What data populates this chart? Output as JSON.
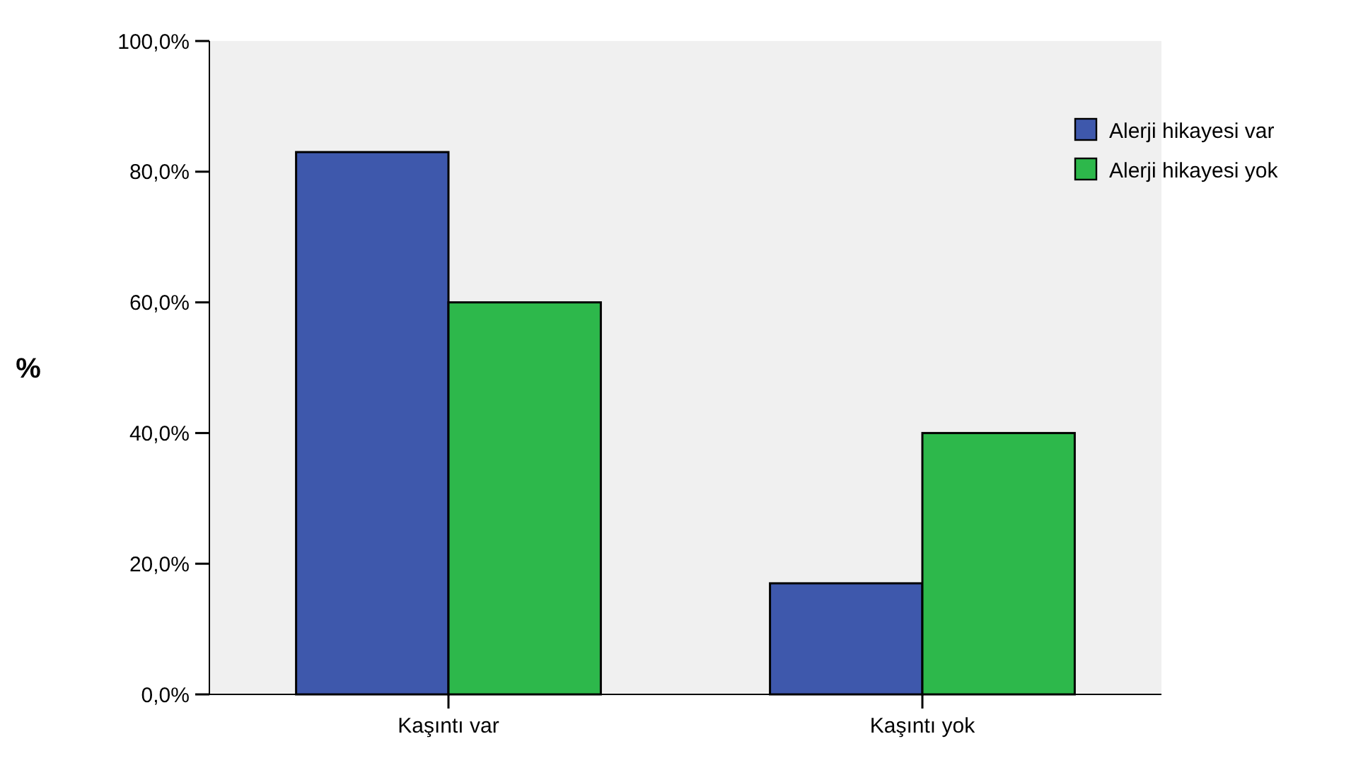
{
  "chart_data": {
    "type": "bar",
    "ylabel": "%",
    "categories": [
      "Kaşıntı var",
      "Kaşıntı yok"
    ],
    "series": [
      {
        "name": "Alerji hikayesi var",
        "color": "#3e58ac",
        "values": [
          83,
          17
        ]
      },
      {
        "name": "Alerji hikayesi yok",
        "color": "#2db84b",
        "values": [
          60,
          40
        ]
      }
    ],
    "ylim": [
      0,
      100
    ],
    "yticks": [
      {
        "value": 0,
        "label": "0,0%"
      },
      {
        "value": 20,
        "label": "20,0%"
      },
      {
        "value": 40,
        "label": "40,0%"
      },
      {
        "value": 60,
        "label": "60,0%"
      },
      {
        "value": 80,
        "label": "80,0%"
      },
      {
        "value": 100,
        "label": "100,0%"
      }
    ],
    "grid": false,
    "legend": "right"
  }
}
